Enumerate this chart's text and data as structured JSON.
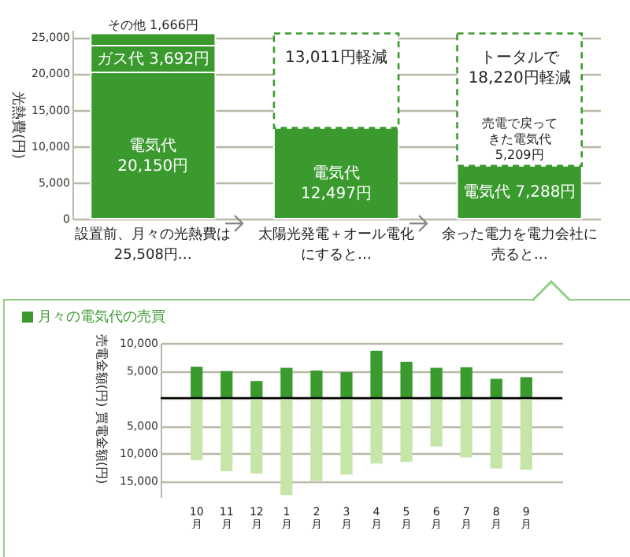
{
  "chart_data": [
    {
      "type": "bar",
      "stacked": true,
      "ylabel": "光熱費(円)",
      "categories": [
        "設置前、月々の光熱費は 25,508円…",
        "太陽光発電＋オール電化にすると…",
        "余った電力を電力会社に売ると…"
      ],
      "ylim": [
        0,
        26000
      ],
      "yticks": [
        {
          "value": 0,
          "label": "0"
        },
        {
          "value": 5000,
          "label": "5,000"
        },
        {
          "value": 10000,
          "label": "10,000"
        },
        {
          "value": 15000,
          "label": "15,000"
        },
        {
          "value": 20000,
          "label": "20,000"
        },
        {
          "value": 25000,
          "label": "25,000"
        }
      ],
      "grid": "y",
      "series": [
        {
          "color": "#3a9a2e",
          "values": [
            20150,
            12497,
            7288
          ],
          "value_labels": [
            "電気代 20,150円",
            "電気代 12,497円",
            "電気代 7,288円"
          ]
        },
        {
          "color": "#3a9a2e",
          "values": [
            3692,
            null,
            null
          ],
          "value_labels": [
            "ガス代 3,692円",
            null,
            null
          ]
        },
        {
          "color": "#3a9a2e",
          "values": [
            1666,
            null,
            null
          ],
          "value_labels": [
            "その他 1,666円",
            null,
            null
          ]
        },
        {
          "color": "#3a9a2e",
          "line_style": "dashed",
          "values": [
            null,
            13011,
            18220
          ],
          "value_labels": [
            null,
            "13,011円軽減",
            "トータルで18,220円軽減"
          ]
        }
      ],
      "annotations": [
        "売電で戻ってきた電気代5,209円"
      ]
    },
    {
      "type": "bar",
      "stacked": true,
      "title": "月々の電気代の売買",
      "ylabel": "売電金額(円)",
      "y2label": "買電金額(円)",
      "categories": [
        "10月",
        "11月",
        "12月",
        "1月",
        "2月",
        "3月",
        "4月",
        "5月",
        "6月",
        "7月",
        "8月",
        "9月"
      ],
      "ylim": [
        -18000,
        10000
      ],
      "yticks": [
        {
          "value": -15000,
          "label": "15,000"
        },
        {
          "value": -10000,
          "label": "10,000"
        },
        {
          "value": -5000,
          "label": "5,000"
        },
        {
          "value": 0,
          "label": null
        },
        {
          "value": 5000,
          "label": "5,000"
        },
        {
          "value": 10000,
          "label": "10,000"
        }
      ],
      "grid": "y",
      "ref_lines": [
        {
          "axis": "y",
          "value": 0,
          "color": "#000000"
        }
      ],
      "series": [
        {
          "color": "#3a9a2e",
          "values": [
            5700,
            4900,
            3100,
            5500,
            5000,
            4700,
            8600,
            6600,
            5500,
            5600,
            3500,
            3800
          ]
        },
        {
          "color": "#c5e6a8",
          "values": [
            -11300,
            -13300,
            -13700,
            -17600,
            -15000,
            -13900,
            -11900,
            -11600,
            -8800,
            -10800,
            -12800,
            -13000
          ]
        }
      ]
    }
  ]
}
